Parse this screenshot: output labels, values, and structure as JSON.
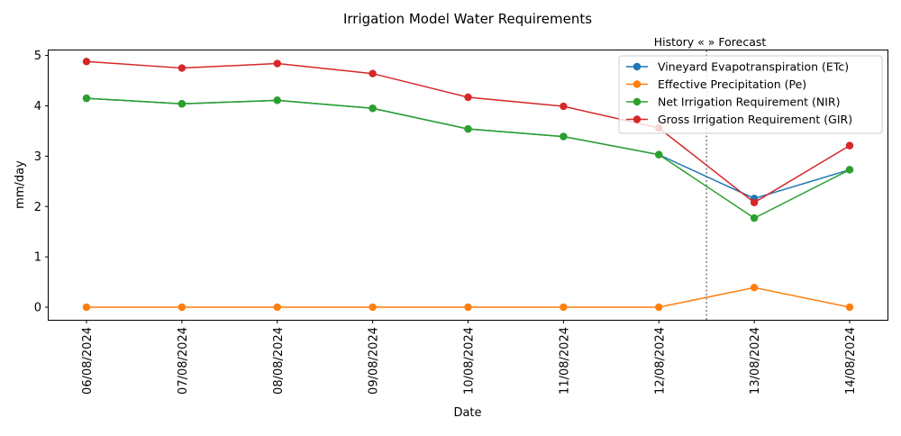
{
  "chart_data": {
    "type": "line",
    "title": "Irrigation Model Water Requirements",
    "xlabel": "Date",
    "ylabel": "mm/day",
    "categories": [
      "06/08/2024",
      "07/08/2024",
      "08/08/2024",
      "09/08/2024",
      "10/08/2024",
      "11/08/2024",
      "12/08/2024",
      "13/08/2024",
      "14/08/2024"
    ],
    "ylim": [
      -0.25,
      5.1
    ],
    "yticks": [
      0,
      1,
      2,
      3,
      4,
      5
    ],
    "grid": false,
    "legend_position": "top-right",
    "divider": {
      "between": [
        "12/08/2024",
        "13/08/2024"
      ],
      "label": "History «  » Forecast",
      "style": "dotted",
      "color": "#808080"
    },
    "series": [
      {
        "name": "Vineyard Evapotranspiration (ETc)",
        "color": "#1f77b4",
        "values": [
          4.15,
          4.04,
          4.11,
          3.95,
          3.54,
          3.39,
          3.03,
          2.16,
          2.73
        ]
      },
      {
        "name": "Effective Precipitation (Pe)",
        "color": "#ff7f0e",
        "values": [
          0,
          0,
          0,
          0,
          0,
          0,
          0,
          0.39,
          0
        ]
      },
      {
        "name": "Net Irrigation Requirement (NIR)",
        "color": "#2ca02c",
        "values": [
          4.15,
          4.04,
          4.11,
          3.95,
          3.54,
          3.39,
          3.03,
          1.77,
          2.73
        ]
      },
      {
        "name": "Gross Irrigation Requirement (GIR)",
        "color": "#d62728",
        "values": [
          4.88,
          4.75,
          4.84,
          4.64,
          4.17,
          3.99,
          3.56,
          2.08,
          3.21
        ]
      }
    ]
  }
}
